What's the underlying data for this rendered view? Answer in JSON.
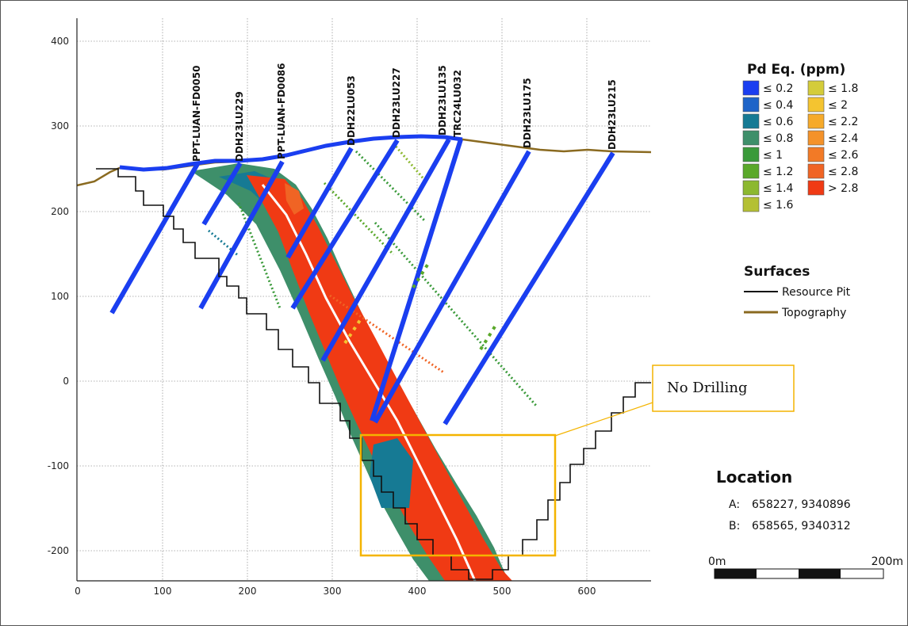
{
  "x_axis": {
    "ticks": [
      "0",
      "100",
      "200",
      "300",
      "400",
      "500",
      "600"
    ]
  },
  "y_axis": {
    "ticks": [
      "400",
      "300",
      "200",
      "100",
      "0",
      "-100",
      "-200"
    ]
  },
  "drill_holes": [
    {
      "id": "PPT-LUAN-FD0050"
    },
    {
      "id": "DDH23LU229"
    },
    {
      "id": "PPT-LUAN-FD0086"
    },
    {
      "id": "DDH22LU053"
    },
    {
      "id": "DDH23LU227"
    },
    {
      "id": "DDH23LU135"
    },
    {
      "id": "TRC24LU032"
    },
    {
      "id": "DDH23LU175"
    },
    {
      "id": "DDH23LU215"
    }
  ],
  "legend_grade": {
    "title": "Pd Eq. (ppm)",
    "left": [
      {
        "label": "≤ 0.2",
        "color": "#1a3ef0"
      },
      {
        "label": "≤ 0.4",
        "color": "#1e64c8"
      },
      {
        "label": "≤ 0.6",
        "color": "#167a94"
      },
      {
        "label": "≤ 0.8",
        "color": "#3e8f6a"
      },
      {
        "label": "≤ 1",
        "color": "#3a9a3a"
      },
      {
        "label": "≤ 1.2",
        "color": "#5aa82a"
      },
      {
        "label": "≤ 1.4",
        "color": "#8cb830"
      },
      {
        "label": "≤ 1.6",
        "color": "#b4c034"
      }
    ],
    "right": [
      {
        "label": "≤ 1.8",
        "color": "#d4cc3a"
      },
      {
        "label": "≤ 2",
        "color": "#f4c430"
      },
      {
        "label": "≤ 2.2",
        "color": "#f6aa2a"
      },
      {
        "label": "≤ 2.4",
        "color": "#f4922a"
      },
      {
        "label": "≤ 2.6",
        "color": "#f27a26"
      },
      {
        "label": "≤ 2.8",
        "color": "#f06424"
      },
      {
        "label": "> 2.8",
        "color": "#f03a14"
      }
    ]
  },
  "legend_surfaces": {
    "title": "Surfaces",
    "items": [
      {
        "label": "Resource Pit",
        "color": "#111111"
      },
      {
        "label": "Topography",
        "color": "#8a6a20"
      }
    ]
  },
  "callout": {
    "text": "No Drilling",
    "color": "#f4b400"
  },
  "location": {
    "title": "Location",
    "points": [
      {
        "key": "A:",
        "value": "658227, 9340896"
      },
      {
        "key": "B:",
        "value": "658565, 9340312"
      }
    ]
  },
  "scale_bar": {
    "start_label": "0m",
    "end_label": "200m"
  }
}
